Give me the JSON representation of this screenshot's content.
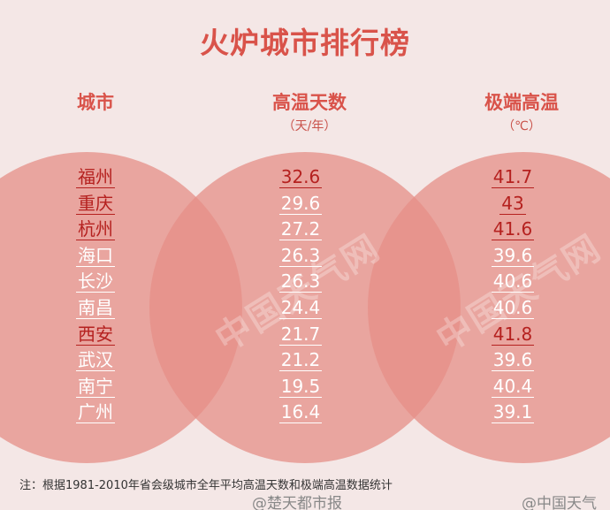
{
  "title": "火炉城市排行榜",
  "columns": {
    "city": {
      "header": "城市",
      "unit": ""
    },
    "days": {
      "header": "高温天数",
      "unit": "（天/年）"
    },
    "max": {
      "header": "极端高温",
      "unit": "（℃）"
    }
  },
  "rows": [
    {
      "city": "福州",
      "days": "32.6",
      "max": "41.7",
      "city_highlight": true,
      "days_highlight": true,
      "max_highlight": true
    },
    {
      "city": "重庆",
      "days": "29.6",
      "max": "43",
      "city_highlight": true,
      "days_highlight": false,
      "max_highlight": true
    },
    {
      "city": "杭州",
      "days": "27.2",
      "max": "41.6",
      "city_highlight": true,
      "days_highlight": false,
      "max_highlight": true
    },
    {
      "city": "海口",
      "days": "26.3",
      "max": "39.6",
      "city_highlight": false,
      "days_highlight": false,
      "max_highlight": false
    },
    {
      "city": "长沙",
      "days": "26.3",
      "max": "40.6",
      "city_highlight": false,
      "days_highlight": false,
      "max_highlight": false
    },
    {
      "city": "南昌",
      "days": "24.4",
      "max": "40.6",
      "city_highlight": false,
      "days_highlight": false,
      "max_highlight": false
    },
    {
      "city": "西安",
      "days": "21.7",
      "max": "41.8",
      "city_highlight": true,
      "days_highlight": false,
      "max_highlight": true
    },
    {
      "city": "武汉",
      "days": "21.2",
      "max": "39.6",
      "city_highlight": false,
      "days_highlight": false,
      "max_highlight": false
    },
    {
      "city": "南宁",
      "days": "19.5",
      "max": "40.4",
      "city_highlight": false,
      "days_highlight": false,
      "max_highlight": false
    },
    {
      "city": "广州",
      "days": "16.4",
      "max": "39.1",
      "city_highlight": false,
      "days_highlight": false,
      "max_highlight": false
    }
  ],
  "note": "注：根据1981-2010年省会级城市全年平均高温天数和极端高温数据统计",
  "watermarks": [
    "中国天气网",
    "中国天气网"
  ],
  "credits": {
    "left": "@楚天都市报",
    "right": "@中国天气"
  },
  "colors": {
    "background": "#f4e7e6",
    "circle": "#e68f87",
    "accent": "#d9534a",
    "highlight_text": "#b5211f",
    "normal_text": "#ffffff"
  }
}
